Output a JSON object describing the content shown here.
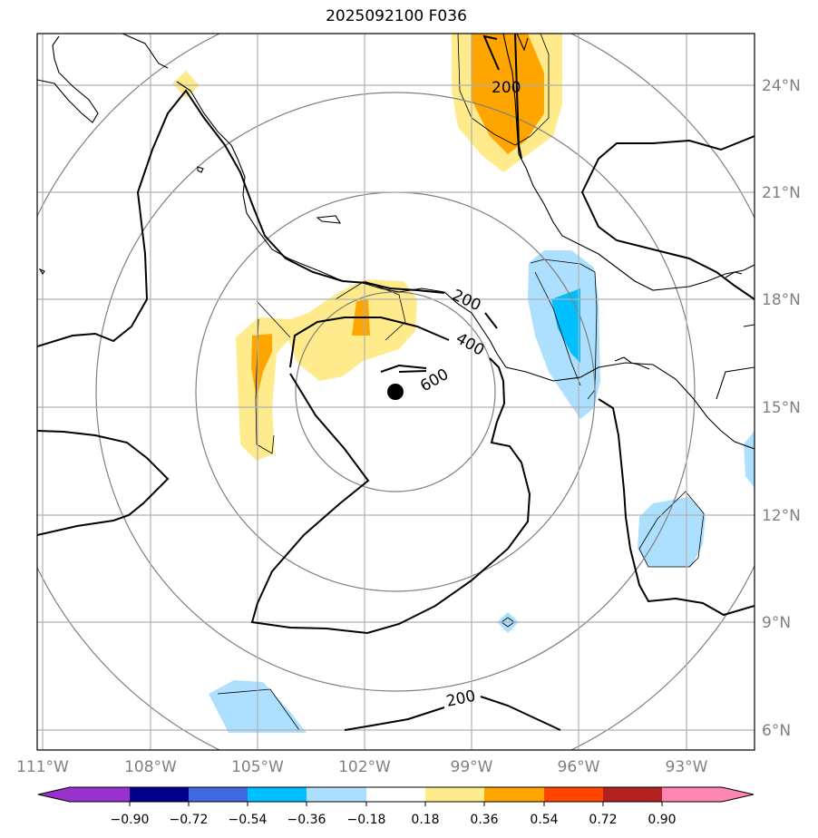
{
  "title": "2025092100 F036",
  "map": {
    "lon_labels": [
      "111°W",
      "108°W",
      "105°W",
      "102°W",
      "99°W",
      "96°W",
      "93°W"
    ],
    "lat_labels": [
      "24°N",
      "21°N",
      "18°N",
      "15°N",
      "12°N",
      "9°N",
      "6°N"
    ],
    "contour_labels": [
      "200",
      "200",
      "400",
      "600",
      "200"
    ],
    "storm_center": {
      "lon": "101.1°W",
      "lat": "15.4°N"
    },
    "colors": {
      "coast": "#000000",
      "grid": "#b0b0b0",
      "range_rings": "#808080",
      "pos_fill_1": "#ffea8c",
      "pos_fill_2": "#ffa500",
      "neg_fill_1": "#addfff",
      "neg_fill_2": "#00bfff"
    }
  },
  "colorbar": {
    "labels": [
      "−0.90",
      "−0.72",
      "−0.54",
      "−0.36",
      "−0.18",
      "0.18",
      "0.36",
      "0.54",
      "0.72",
      "0.90"
    ],
    "colors": [
      "#9932cc",
      "#00008b",
      "#4169e1",
      "#00bfff",
      "#addfff",
      "#ffffff",
      "#ffea8c",
      "#ffa500",
      "#ff4500",
      "#b22222",
      "#ff85b3"
    ]
  }
}
